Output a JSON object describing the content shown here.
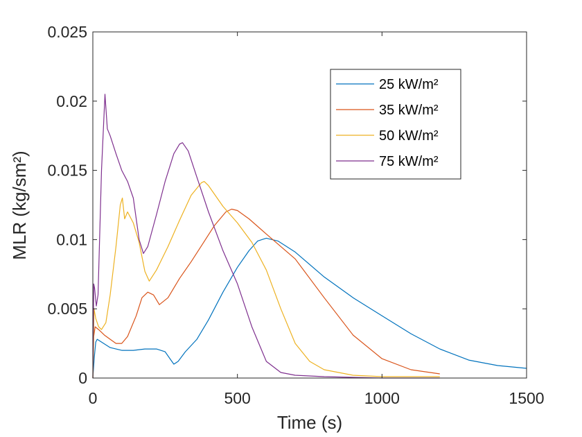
{
  "chart_data": {
    "type": "line",
    "xlabel": "Time (s)",
    "ylabel": "MLR (kg/sm²)",
    "xlim": [
      0,
      1500
    ],
    "ylim": [
      0,
      0.025
    ],
    "xticks": [
      0,
      500,
      1000,
      1500
    ],
    "xtick_labels": [
      "0",
      "500",
      "1000",
      "1500"
    ],
    "yticks": [
      0,
      0.005,
      0.01,
      0.015,
      0.02,
      0.025
    ],
    "ytick_labels": [
      "0",
      "0.005",
      "0.01",
      "0.015",
      "0.02",
      "0.025"
    ],
    "grid": false,
    "legend_position": "top-right",
    "series": [
      {
        "name": "25 kW/m²",
        "color": "#0072BD",
        "points": [
          [
            0,
            0
          ],
          [
            5,
            0.0015
          ],
          [
            10,
            0.0026
          ],
          [
            15,
            0.0028
          ],
          [
            30,
            0.0026
          ],
          [
            60,
            0.0022
          ],
          [
            100,
            0.002
          ],
          [
            140,
            0.002
          ],
          [
            180,
            0.0021
          ],
          [
            220,
            0.0021
          ],
          [
            250,
            0.0019
          ],
          [
            270,
            0.0013
          ],
          [
            280,
            0.001
          ],
          [
            295,
            0.0012
          ],
          [
            320,
            0.0019
          ],
          [
            360,
            0.0028
          ],
          [
            400,
            0.0042
          ],
          [
            450,
            0.0062
          ],
          [
            500,
            0.008
          ],
          [
            540,
            0.0092
          ],
          [
            570,
            0.0099
          ],
          [
            600,
            0.0101
          ],
          [
            640,
            0.0099
          ],
          [
            700,
            0.0091
          ],
          [
            800,
            0.0073
          ],
          [
            900,
            0.0058
          ],
          [
            1000,
            0.0045
          ],
          [
            1100,
            0.0032
          ],
          [
            1200,
            0.0021
          ],
          [
            1300,
            0.0013
          ],
          [
            1400,
            0.0009
          ],
          [
            1500,
            0.0007
          ]
        ]
      },
      {
        "name": "35 kW/m²",
        "color": "#D95319",
        "points": [
          [
            0,
            0
          ],
          [
            3,
            0.003
          ],
          [
            8,
            0.0037
          ],
          [
            20,
            0.0035
          ],
          [
            40,
            0.0031
          ],
          [
            60,
            0.0028
          ],
          [
            80,
            0.0025
          ],
          [
            100,
            0.0025
          ],
          [
            120,
            0.003
          ],
          [
            150,
            0.0045
          ],
          [
            170,
            0.0058
          ],
          [
            190,
            0.0062
          ],
          [
            210,
            0.006
          ],
          [
            230,
            0.0053
          ],
          [
            260,
            0.0058
          ],
          [
            300,
            0.0072
          ],
          [
            340,
            0.0084
          ],
          [
            380,
            0.0097
          ],
          [
            420,
            0.011
          ],
          [
            460,
            0.012
          ],
          [
            480,
            0.0122
          ],
          [
            500,
            0.0121
          ],
          [
            540,
            0.0115
          ],
          [
            600,
            0.0104
          ],
          [
            700,
            0.0086
          ],
          [
            800,
            0.0058
          ],
          [
            900,
            0.0031
          ],
          [
            1000,
            0.0014
          ],
          [
            1100,
            0.0006
          ],
          [
            1200,
            0.0003
          ]
        ]
      },
      {
        "name": "50 kW/m²",
        "color": "#EDB120",
        "points": [
          [
            0,
            0
          ],
          [
            4,
            0.005
          ],
          [
            10,
            0.0043
          ],
          [
            20,
            0.0037
          ],
          [
            30,
            0.0035
          ],
          [
            45,
            0.004
          ],
          [
            60,
            0.006
          ],
          [
            80,
            0.0095
          ],
          [
            95,
            0.0125
          ],
          [
            102,
            0.013
          ],
          [
            110,
            0.0115
          ],
          [
            120,
            0.012
          ],
          [
            140,
            0.0112
          ],
          [
            160,
            0.0098
          ],
          [
            180,
            0.0077
          ],
          [
            195,
            0.007
          ],
          [
            220,
            0.0078
          ],
          [
            260,
            0.0095
          ],
          [
            300,
            0.0114
          ],
          [
            340,
            0.0132
          ],
          [
            375,
            0.0141
          ],
          [
            385,
            0.0142
          ],
          [
            400,
            0.0139
          ],
          [
            450,
            0.0124
          ],
          [
            500,
            0.0112
          ],
          [
            550,
            0.0098
          ],
          [
            600,
            0.0078
          ],
          [
            650,
            0.005
          ],
          [
            700,
            0.0025
          ],
          [
            750,
            0.0012
          ],
          [
            800,
            0.0006
          ],
          [
            900,
            0.0002
          ],
          [
            1000,
            0.0001
          ],
          [
            1100,
            0.0001
          ],
          [
            1200,
            0.0001
          ]
        ]
      },
      {
        "name": "75 kW/m²",
        "color": "#7E2F8E",
        "points": [
          [
            0,
            0
          ],
          [
            3,
            0.0068
          ],
          [
            6,
            0.0065
          ],
          [
            12,
            0.0052
          ],
          [
            18,
            0.006
          ],
          [
            30,
            0.015
          ],
          [
            42,
            0.0205
          ],
          [
            50,
            0.018
          ],
          [
            60,
            0.0175
          ],
          [
            80,
            0.0162
          ],
          [
            100,
            0.015
          ],
          [
            120,
            0.0142
          ],
          [
            140,
            0.013
          ],
          [
            160,
            0.01
          ],
          [
            175,
            0.009
          ],
          [
            190,
            0.0095
          ],
          [
            220,
            0.0118
          ],
          [
            250,
            0.0142
          ],
          [
            280,
            0.0162
          ],
          [
            300,
            0.0169
          ],
          [
            310,
            0.017
          ],
          [
            330,
            0.0164
          ],
          [
            360,
            0.0145
          ],
          [
            400,
            0.012
          ],
          [
            450,
            0.0092
          ],
          [
            500,
            0.0068
          ],
          [
            550,
            0.0037
          ],
          [
            600,
            0.0012
          ],
          [
            650,
            0.0004
          ],
          [
            700,
            0.0002
          ],
          [
            800,
            0.0001
          ],
          [
            1000,
            0.0
          ],
          [
            1200,
            0.0
          ]
        ]
      }
    ]
  }
}
